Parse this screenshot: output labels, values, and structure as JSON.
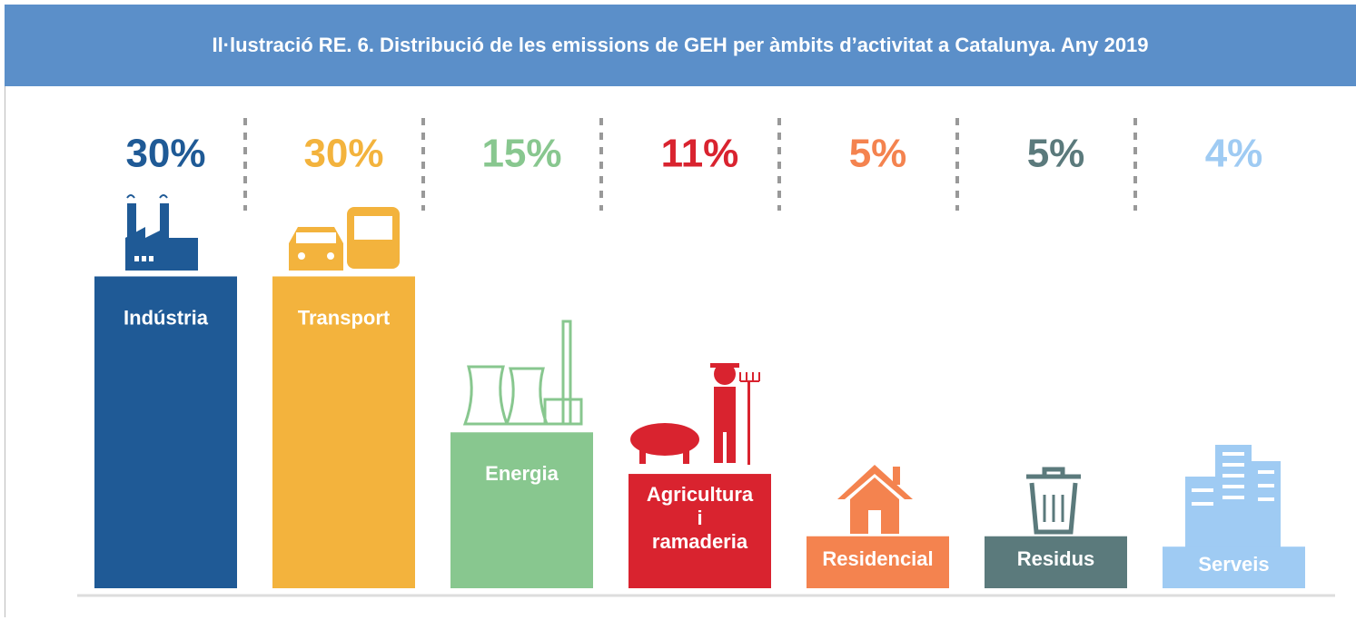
{
  "chart_data": {
    "type": "bar",
    "title": "Il·lustració RE. 6. Distribució de les emissions de GEH per àmbits d’activitat a Catalunya. Any 2019",
    "categories": [
      "Indústria",
      "Transport",
      "Energia",
      "Agricultura i ramaderia",
      "Residencial",
      "Residus",
      "Serveis"
    ],
    "values": [
      30,
      30,
      15,
      11,
      5,
      5,
      4
    ],
    "value_labels": [
      "30%",
      "30%",
      "15%",
      "11%",
      "5%",
      "5%",
      "4%"
    ],
    "colors": [
      "#1f5a96",
      "#f3b33d",
      "#88c78f",
      "#d9232f",
      "#f4834f",
      "#5b7a7c",
      "#9fcbf3"
    ]
  }
}
